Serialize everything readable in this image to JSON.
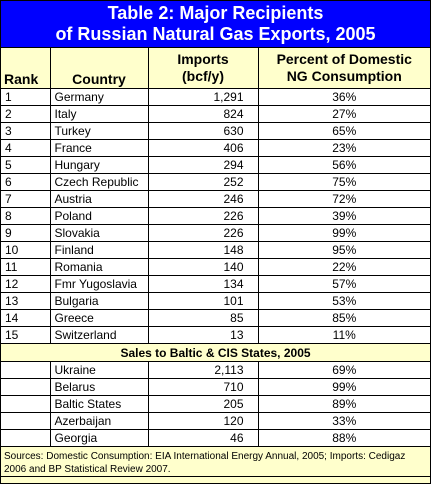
{
  "title": {
    "line1": "Table 2: Major Recipients",
    "line2": "of Russian Natural Gas Exports, 2005"
  },
  "headers": {
    "rank": "Rank",
    "country": "Country",
    "imports_line1": "Imports",
    "imports_line2": "(bcf/y)",
    "pct_line1": "Percent of Domestic",
    "pct_line2": "NG Consumption"
  },
  "rows": [
    {
      "rank": "1",
      "country": "Germany",
      "imports": "1,291",
      "pct": "36%"
    },
    {
      "rank": "2",
      "country": "Italy",
      "imports": "824",
      "pct": "27%"
    },
    {
      "rank": "3",
      "country": "Turkey",
      "imports": "630",
      "pct": "65%"
    },
    {
      "rank": "4",
      "country": "France",
      "imports": "406",
      "pct": "23%"
    },
    {
      "rank": "5",
      "country": "Hungary",
      "imports": "294",
      "pct": "56%"
    },
    {
      "rank": "6",
      "country": "Czech Republic",
      "imports": "252",
      "pct": "75%"
    },
    {
      "rank": "7",
      "country": "Austria",
      "imports": "246",
      "pct": "72%"
    },
    {
      "rank": "8",
      "country": "Poland",
      "imports": "226",
      "pct": "39%"
    },
    {
      "rank": "9",
      "country": "Slovakia",
      "imports": "226",
      "pct": "99%"
    },
    {
      "rank": "10",
      "country": "Finland",
      "imports": "148",
      "pct": "95%"
    },
    {
      "rank": "11",
      "country": "Romania",
      "imports": "140",
      "pct": "22%"
    },
    {
      "rank": "12",
      "country": "Fmr Yugoslavia",
      "imports": "134",
      "pct": "57%"
    },
    {
      "rank": "13",
      "country": "Bulgaria",
      "imports": "101",
      "pct": "53%"
    },
    {
      "rank": "14",
      "country": "Greece",
      "imports": "85",
      "pct": "85%"
    },
    {
      "rank": "15",
      "country": "Switzerland",
      "imports": "13",
      "pct": "11%"
    }
  ],
  "section_title": "Sales to Baltic & CIS States, 2005",
  "cis_rows": [
    {
      "country": "Ukraine",
      "imports": "2,113",
      "pct": "69%"
    },
    {
      "country": "Belarus",
      "imports": "710",
      "pct": "99%"
    },
    {
      "country": "Baltic States",
      "imports": "205",
      "pct": "89%"
    },
    {
      "country": "Azerbaijan",
      "imports": "120",
      "pct": "33%"
    },
    {
      "country": "Georgia",
      "imports": "46",
      "pct": "88%"
    }
  ],
  "footer": "Sources: Domestic Consumption: EIA International Energy Annual, 2005; Imports: Cedigaz 2006 and BP Statistical Review 2007.",
  "colors": {
    "title_bg": "#0000ff",
    "header_bg": "#ffffcc",
    "row_bg": "#ffffff"
  }
}
